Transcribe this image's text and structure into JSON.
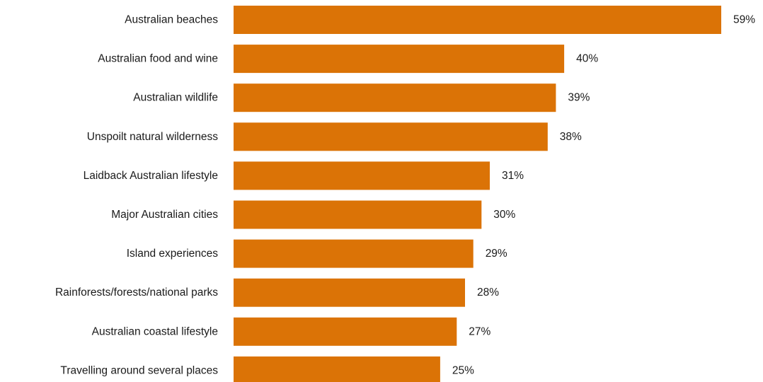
{
  "chart_data": {
    "type": "bar",
    "orientation": "horizontal",
    "categories": [
      "Australian beaches",
      "Australian food and wine",
      "Australian wildlife",
      "Unspoilt natural wilderness",
      "Laidback Australian lifestyle",
      "Major Australian cities",
      "Island experiences",
      "Rainforests/forests/national parks",
      "Australian coastal lifestyle",
      "Travelling around several places"
    ],
    "values": [
      59,
      40,
      39,
      38,
      31,
      30,
      29,
      28,
      27,
      25
    ],
    "value_labels": [
      "59%",
      "40%",
      "39%",
      "38%",
      "31%",
      "30%",
      "29%",
      "28%",
      "27%",
      "25%"
    ],
    "unit": "%",
    "xlim": [
      0,
      59
    ],
    "bar_color": "#DB7306",
    "grid": false,
    "legend": "none"
  }
}
